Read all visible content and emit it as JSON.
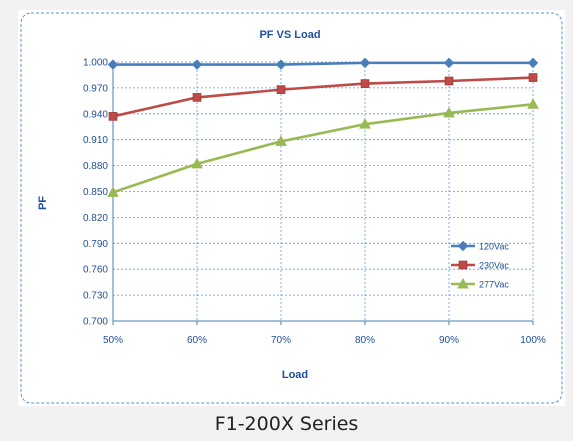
{
  "caption": "F1-200X Series",
  "chart_data": {
    "type": "line",
    "title": "PF  VS  Load",
    "xlabel": "Load",
    "ylabel": "PF",
    "categories": [
      "50%",
      "60%",
      "70%",
      "80%",
      "90%",
      "100%"
    ],
    "ylim": [
      0.7,
      1.0
    ],
    "yticks": [
      "1.000",
      "0.970",
      "0.940",
      "0.910",
      "0.880",
      "0.850",
      "0.820",
      "0.790",
      "0.760",
      "0.730",
      "0.700"
    ],
    "grid": true,
    "legend_position": "right",
    "series": [
      {
        "name": "120Vac",
        "color": "#4a7ebb",
        "marker": "diamond",
        "values": [
          0.997,
          0.997,
          0.997,
          0.999,
          0.999,
          0.999
        ]
      },
      {
        "name": "230Vac",
        "color": "#be4b48",
        "marker": "square",
        "values": [
          0.937,
          0.959,
          0.968,
          0.975,
          0.978,
          0.982
        ]
      },
      {
        "name": "277Vac",
        "color": "#98b954",
        "marker": "triangle",
        "values": [
          0.849,
          0.882,
          0.908,
          0.928,
          0.941,
          0.951
        ]
      }
    ]
  }
}
